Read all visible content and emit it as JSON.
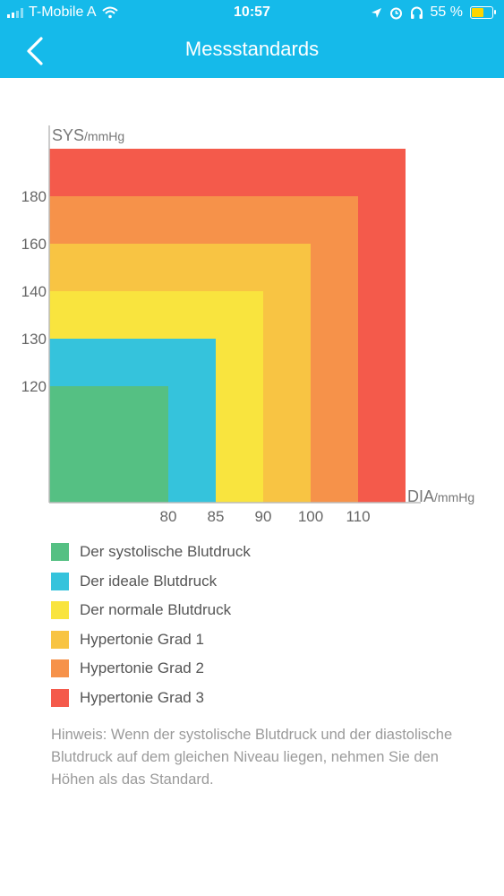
{
  "status_bar": {
    "carrier": "T-Mobile A",
    "time": "10:57",
    "battery": "55 %"
  },
  "header": {
    "title": "Messstandards"
  },
  "chart_data": {
    "type": "area",
    "ylabel": "SYS",
    "yunit": "/mmHg",
    "xlabel": "DIA",
    "xunit": "/mmHg",
    "y_ticks": [
      "180",
      "160",
      "140",
      "130",
      "120"
    ],
    "x_ticks": [
      "80",
      "85",
      "90",
      "100",
      "110"
    ],
    "zones": [
      {
        "name": "Der systolische Blutdruck",
        "x_max": 80,
        "y_max": 120,
        "color": "#55c083"
      },
      {
        "name": "Der ideale Blutdruck",
        "x_max": 85,
        "y_max": 130,
        "color": "#35c3dc"
      },
      {
        "name": "Der normale Blutdruck",
        "x_max": 90,
        "y_max": 140,
        "color": "#f9e43e"
      },
      {
        "name": "Hypertonie Grad 1",
        "x_max": 100,
        "y_max": 160,
        "color": "#f8c443"
      },
      {
        "name": "Hypertonie Grad 2",
        "x_max": 110,
        "y_max": 180,
        "color": "#f6924a"
      },
      {
        "name": "Hypertonie Grad 3",
        "x_max": null,
        "y_max": null,
        "color": "#f45a4b"
      }
    ]
  },
  "note": "Hinweis: Wenn der systolische Blutdruck und der diastolische Blutdruck auf dem gleichen Niveau liegen, nehmen Sie den Höhen als das Standard."
}
